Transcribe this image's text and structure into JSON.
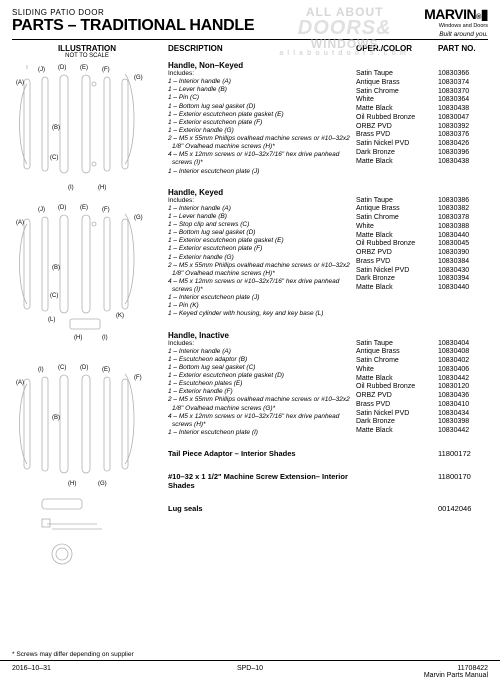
{
  "header": {
    "category": "SLIDING PATIO DOOR",
    "title": "PARTS – TRADITIONAL HANDLE",
    "watermark_top": "ALL ABOUT",
    "watermark_main": "DOORS&",
    "watermark_sub": "WINDOWS",
    "watermark_tag": "allaboutdoors.com",
    "brand": "MARVIN",
    "brand_sub": "Windows and Doors",
    "brand_tag": "Built around you."
  },
  "columns": {
    "illus": "ILLUSTRATION",
    "illus_sub": "NOT TO SCALE",
    "desc": "DESCRIPTION",
    "oper": "OPER./COLOR",
    "part": "PART NO."
  },
  "sections": [
    {
      "title": "Handle, Non–Keyed",
      "includes_label": "Includes:",
      "includes": [
        "1 – Interior handle (A)",
        "1 – Lever handle (B)",
        "1 – Pin (C)",
        "1 – Bottom lug seal gasket (D)",
        "1 – Exterior escutcheon plate gasket (E)",
        "1 – Exterior escutcheon plate (F)",
        "1 – Exterior handle (G)",
        "2 – M5 x 55mm Phillips ovalhead machine screws or #10–32x2 1/8\" Ovalhead machine screws (H)*",
        "4 – M5 x 12mm screws or #10–32x7/16\" hex drive panhead screws (I)*",
        "1 – Interior escutcheon plate (J)"
      ],
      "finishes": [
        "Satin Taupe",
        "Antique Brass",
        "Satin Chrome",
        "White",
        "Matte Black",
        "Oil Rubbed Bronze",
        "ORBZ PVD",
        "Brass PVD",
        "Satin Nickel PVD",
        "Dark Bronze",
        "Matte Black"
      ],
      "parts": [
        "10830366",
        "10830374",
        "10830370",
        "10830364",
        "10830438",
        "10830047",
        "10830392",
        "10830376",
        "10830426",
        "10830396",
        "10830438"
      ]
    },
    {
      "title": "Handle, Keyed",
      "includes_label": "Includes:",
      "includes": [
        "1 – Interior handle (A)",
        "1 – Lever handle (B)",
        "1 – Stop clip and screws (C)",
        "1 – Bottom lug seal gasket (D)",
        "1 – Exterior escutcheon plate gasket (E)",
        "1 – Exterior escutcheon plate (F)",
        "1 – Exterior handle (G)",
        "2 – M5 x 55mm Phillips ovalhead machine screws or #10–32x2 1/8\" Ovalhead machine screws (H)*",
        "4 – M5 x 12mm screws or #10–32x7/16\" hex drive panhead screws (I)*",
        "1 – Interior escutcheon plate (J)",
        "1 – Pin (K)",
        "1 – Keyed cylinder with housing, key and key base (L)"
      ],
      "finishes": [
        "Satin Taupe",
        "Antique Brass",
        "Satin Chrome",
        "White",
        "Matte Black",
        "Oil Rubbed Bronze",
        "ORBZ PVD",
        "Brass PVD",
        "Satin Nickel PVD",
        "Dark Bronze",
        "Matte Black"
      ],
      "parts": [
        "10830386",
        "10830382",
        "10830378",
        "10830388",
        "10830440",
        "10830045",
        "10830390",
        "10830384",
        "10830430",
        "10830394",
        "10830440"
      ]
    },
    {
      "title": "Handle, Inactive",
      "includes_label": "Includes:",
      "includes": [
        "1 – Interior handle (A)",
        "1 – Escutcheon adaptor (B)",
        "1 – Bottom lug seal gasket (C)",
        "1 – Exterior escutcheon plate gasket (D)",
        "1 – Escutcheon plates (E)",
        "1 – Exterior handle (F)",
        "2 – M5 x 55mm Phillips ovalhead machine screws or #10–32x2 1/8\" Ovalhead machine screws (G)*",
        "4 – M5 x 12mm screws or #10–32x7/16\" hex drive panhead screws (H)*",
        "1 – Interior escutcheon plate (I)"
      ],
      "finishes": [
        "Satin Taupe",
        "Antique Brass",
        "Satin Chrome",
        "White",
        "Matte Black",
        "Oil Rubbed Bronze",
        "ORBZ PVD",
        "Brass PVD",
        "Satin Nickel PVD",
        "Dark Bronze",
        "Matte Black"
      ],
      "parts": [
        "10830404",
        "10830408",
        "10830402",
        "10830406",
        "10830442",
        "10830120",
        "10830436",
        "10830410",
        "10830434",
        "10830398",
        "10830442"
      ]
    }
  ],
  "simple_rows": [
    {
      "label": "Tail Piece Adaptor – Interior Shades",
      "part": "11800172"
    },
    {
      "label": "#10–32 x 1 1/2\" Machine Screw Extension– Interior Shades",
      "part": "11800170"
    },
    {
      "label": "Lug seals",
      "part": "00142046"
    }
  ],
  "footnote": "*    Screws may differ depending on supplier",
  "footer": {
    "left": "2016–10–31",
    "center": "SPD–10",
    "right1": "11708422",
    "right2": "Marvin Parts Manual"
  },
  "illus_labels": [
    "(A)",
    "(B)",
    "(C)",
    "(D)",
    "(E)",
    "(F)",
    "(G)",
    "(H)",
    "(I)",
    "(J)",
    "(K)",
    "(L)"
  ]
}
